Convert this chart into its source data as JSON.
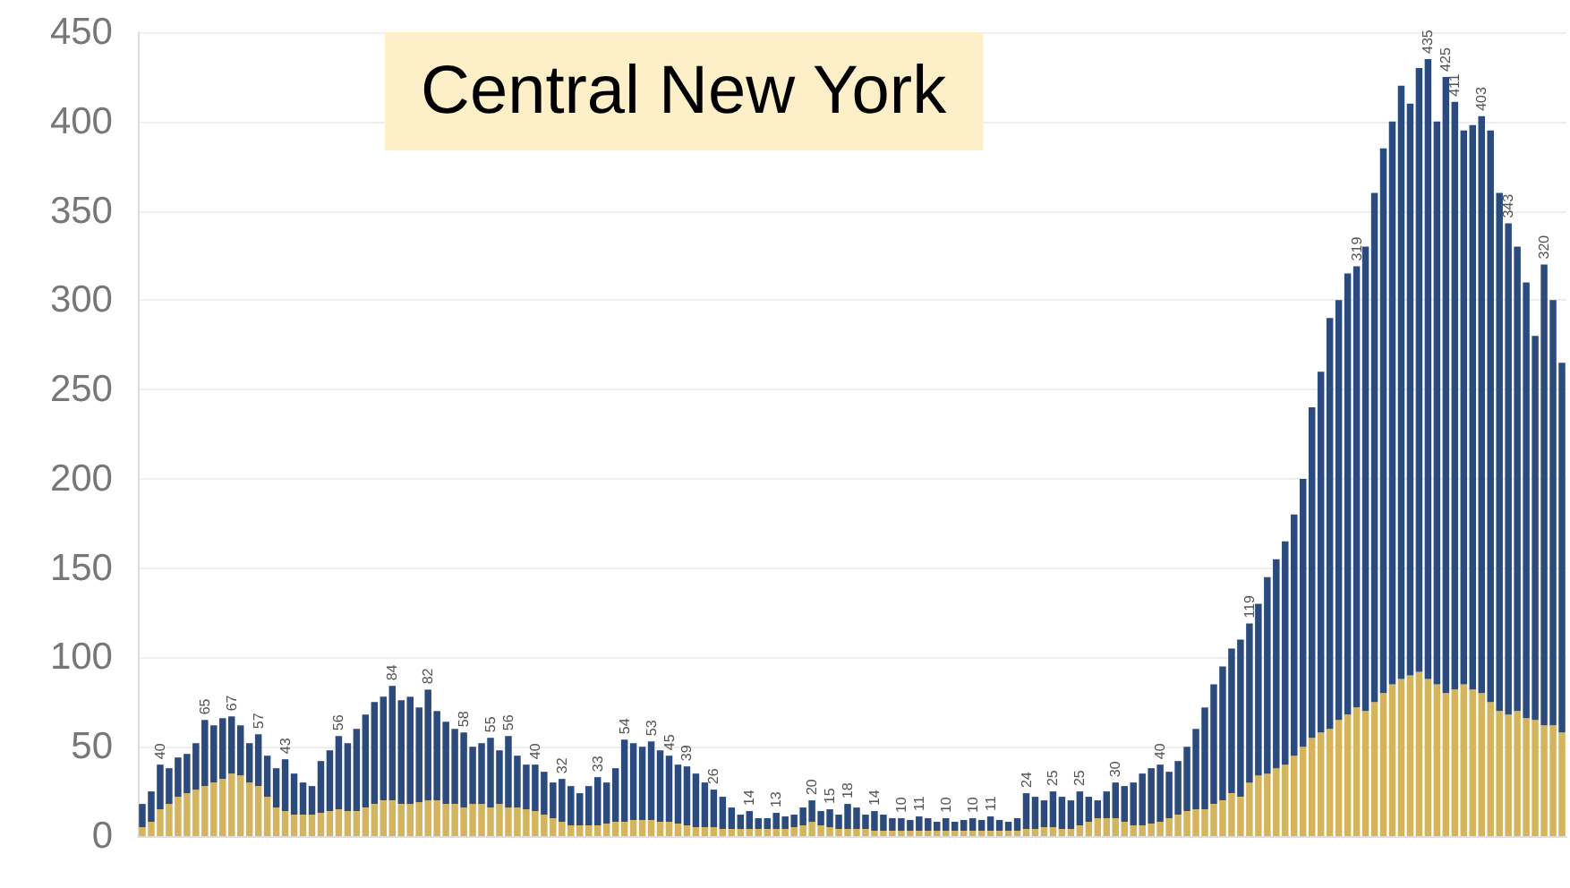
{
  "chart_data": {
    "type": "bar",
    "title": "Central New York",
    "stacked": true,
    "grid": "y",
    "categories": [
      null,
      null,
      null,
      null,
      null,
      null,
      null,
      null,
      null,
      null,
      null,
      null,
      null,
      null,
      null,
      null,
      null,
      null,
      null,
      null,
      null,
      null,
      null,
      null,
      null,
      null,
      null,
      null,
      null,
      null,
      null,
      null,
      null,
      null,
      null,
      null,
      null,
      null,
      null,
      null,
      null,
      null,
      null,
      null,
      null,
      null,
      null,
      null,
      null,
      null,
      null,
      null,
      null,
      null,
      null,
      null,
      null,
      null,
      null,
      null,
      null,
      null,
      null,
      null,
      null,
      null,
      null,
      null,
      null,
      null,
      null,
      null,
      null,
      null,
      null,
      null,
      null,
      null,
      null,
      null,
      null,
      null,
      null,
      null,
      null,
      null,
      null,
      null,
      null,
      null,
      null,
      null,
      null,
      null,
      null,
      null,
      null,
      null,
      null,
      null,
      null,
      null,
      null,
      null,
      null,
      null,
      null,
      null,
      null,
      null,
      null,
      null,
      null,
      null,
      null,
      null,
      null,
      null,
      null,
      null,
      null,
      null,
      null,
      null,
      null,
      null,
      null,
      null,
      null,
      null,
      null,
      null,
      null,
      null,
      null,
      null,
      null,
      null,
      null,
      null,
      null,
      null,
      null,
      null,
      null,
      null,
      null,
      null,
      null,
      null,
      null,
      null,
      null,
      null,
      null,
      null,
      null,
      null,
      null,
      null
    ],
    "series": [
      {
        "color": "#d4b45c",
        "values": [
          5,
          8,
          15,
          18,
          22,
          24,
          26,
          28,
          30,
          32,
          35,
          34,
          30,
          28,
          22,
          16,
          14,
          12,
          12,
          12,
          13,
          14,
          15,
          14,
          14,
          16,
          18,
          20,
          20,
          18,
          18,
          19,
          20,
          20,
          18,
          18,
          16,
          18,
          18,
          16,
          18,
          16,
          16,
          15,
          14,
          12,
          10,
          8,
          6,
          6,
          6,
          6,
          7,
          8,
          8,
          9,
          9,
          9,
          8,
          8,
          7,
          6,
          5,
          5,
          5,
          4,
          4,
          4,
          4,
          4,
          4,
          4,
          4,
          5,
          6,
          8,
          6,
          5,
          4,
          4,
          4,
          4,
          3,
          3,
          3,
          3,
          3,
          3,
          3,
          3,
          3,
          3,
          3,
          3,
          3,
          3,
          3,
          3,
          3,
          4,
          4,
          5,
          5,
          4,
          4,
          6,
          8,
          10,
          10,
          10,
          8,
          6,
          6,
          7,
          8,
          10,
          12,
          14,
          15,
          15,
          18,
          20,
          24,
          22,
          30,
          34,
          35,
          38,
          40,
          45,
          50,
          55,
          58,
          60,
          65,
          68,
          72,
          70,
          75,
          80,
          85,
          88,
          90,
          92,
          88,
          85,
          80,
          82,
          85,
          82,
          80,
          75,
          70,
          68,
          70,
          66,
          65,
          62,
          62,
          58
        ]
      },
      {
        "color": "#2b4a7d",
        "values": [
          13,
          17,
          25,
          20,
          22,
          22,
          26,
          37,
          32,
          34,
          32,
          28,
          22,
          29,
          23,
          22,
          29,
          23,
          18,
          16,
          29,
          34,
          41,
          38,
          46,
          52,
          57,
          58,
          64,
          58,
          60,
          53,
          62,
          50,
          46,
          42,
          42,
          32,
          34,
          39,
          30,
          40,
          29,
          25,
          26,
          24,
          20,
          24,
          22,
          18,
          22,
          27,
          23,
          30,
          46,
          43,
          41,
          44,
          40,
          37,
          33,
          33,
          30,
          25,
          21,
          18,
          12,
          8,
          10,
          6,
          6,
          9,
          7,
          7,
          10,
          12,
          8,
          10,
          8,
          14,
          12,
          8,
          11,
          9,
          7,
          7,
          6,
          8,
          7,
          5,
          7,
          5,
          6,
          7,
          6,
          8,
          6,
          5,
          7,
          20,
          18,
          15,
          20,
          18,
          16,
          19,
          14,
          10,
          15,
          20,
          20,
          24,
          29,
          31,
          32,
          26,
          30,
          36,
          45,
          57,
          67,
          75,
          81,
          88,
          89,
          96,
          110,
          117,
          125,
          135,
          150,
          185,
          202,
          230,
          235,
          247,
          247,
          260,
          285,
          305,
          315,
          332,
          320,
          338,
          347,
          315,
          345,
          329,
          310,
          316,
          323,
          320,
          290,
          275,
          260,
          244,
          215,
          258,
          238,
          207
        ]
      }
    ],
    "totals": [
      null,
      null,
      "40",
      null,
      null,
      null,
      null,
      "65",
      null,
      null,
      "67",
      null,
      null,
      "57",
      null,
      null,
      "43",
      null,
      null,
      null,
      null,
      null,
      "56",
      null,
      null,
      null,
      null,
      null,
      "84",
      null,
      null,
      null,
      "82",
      null,
      null,
      null,
      "58",
      null,
      null,
      "55",
      null,
      "56",
      null,
      null,
      "40",
      null,
      null,
      "32",
      null,
      null,
      null,
      "33",
      null,
      null,
      "54",
      null,
      null,
      "53",
      null,
      "45",
      null,
      "39",
      null,
      null,
      "26",
      null,
      null,
      null,
      "14",
      null,
      null,
      "13",
      null,
      null,
      null,
      "20",
      null,
      "15",
      null,
      "18",
      null,
      null,
      "14",
      null,
      null,
      "10",
      null,
      "11",
      null,
      null,
      "10",
      null,
      null,
      "10",
      null,
      "11",
      null,
      null,
      null,
      "24",
      null,
      null,
      "25",
      null,
      null,
      "25",
      null,
      null,
      null,
      "30",
      null,
      null,
      null,
      null,
      "40",
      null,
      null,
      null,
      null,
      null,
      null,
      null,
      null,
      null,
      "119",
      null,
      null,
      null,
      null,
      null,
      null,
      null,
      null,
      null,
      null,
      null,
      "319",
      null,
      null,
      null,
      null,
      null,
      null,
      null,
      "435",
      null,
      "425",
      "411",
      null,
      null,
      "403",
      null,
      null,
      "343",
      null,
      null,
      null,
      "320",
      null,
      null
    ],
    "ylim": [
      0,
      450
    ],
    "yticks": [
      0,
      50,
      100,
      150,
      200,
      250,
      300,
      350,
      400,
      450
    ],
    "tick_labels": "y"
  }
}
